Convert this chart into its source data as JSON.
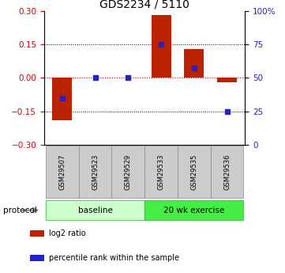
{
  "title": "GDS2234 / 5110",
  "samples": [
    "GSM29507",
    "GSM29523",
    "GSM29529",
    "GSM29533",
    "GSM29535",
    "GSM29536"
  ],
  "log2_ratios": [
    -0.19,
    0.0,
    0.0,
    0.28,
    0.13,
    -0.02
  ],
  "percentile_ranks": [
    35.0,
    50.0,
    50.0,
    75.0,
    57.0,
    25.0
  ],
  "ylim_left": [
    -0.3,
    0.3
  ],
  "ylim_right": [
    0,
    100
  ],
  "yticks_left": [
    -0.3,
    -0.15,
    0.0,
    0.15,
    0.3
  ],
  "yticks_right": [
    0,
    25,
    50,
    75,
    100
  ],
  "ytick_labels_right": [
    "0",
    "25",
    "50",
    "75",
    "100%"
  ],
  "bar_color": "#bb2200",
  "dot_color": "#2222cc",
  "protocol_groups": [
    {
      "label": "baseline",
      "samples": [
        0,
        1,
        2
      ],
      "color": "#ccffcc"
    },
    {
      "label": "20 wk exercise",
      "samples": [
        3,
        4,
        5
      ],
      "color": "#44ee44"
    }
  ],
  "protocol_label": "protocol",
  "legend_items": [
    {
      "label": "log2 ratio",
      "color": "#bb2200"
    },
    {
      "label": "percentile rank within the sample",
      "color": "#2222cc"
    }
  ],
  "hline_zero_color": "#cc0000",
  "hline_zero_style": ":",
  "grid_style": ":",
  "grid_color": "#000000",
  "bar_width": 0.6,
  "bg_color": "#ffffff",
  "label_box_color": "#cccccc",
  "label_box_edge": "#888888",
  "spine_color": "#000000"
}
